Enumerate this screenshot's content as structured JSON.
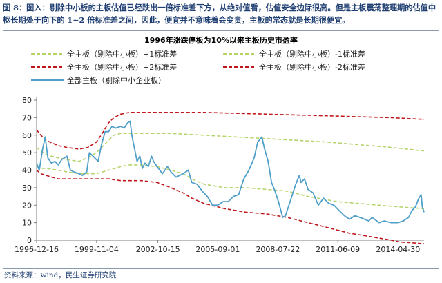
{
  "figure": {
    "number": "图 8：",
    "caption": "图入：剔除中小板的主板估值已经跌出一倍标准差下方，从绝对值看，估值安全边际很高。但是主板震荡整理期的估值中枢长期处于向下的 1~2 倍标准差之间，因此，便宜并不意味着会变贵，主板的常态就是长期很便宜。",
    "source": "资料来源：wind，民生证券研究院"
  },
  "colors": {
    "plus1": "#b5d36b",
    "minus1": "#b5d36b",
    "plus2": "#c0161c",
    "minus2": "#c0161c",
    "pe": "#4f9fc9",
    "caption": "#1f3f72"
  },
  "chart_data": {
    "type": "line",
    "title": "1996年涨跌停板为10%以来主板历史市盈率",
    "x_tick_labels": [
      "1996-12-16",
      "1999-11-04",
      "2002-10-15",
      "2005-09-01",
      "2008-07-22",
      "2011-06-09",
      "2014-04-30"
    ],
    "x_range": [
      "1996-12-16",
      "2015-07-31"
    ],
    "ylim": [
      0,
      80
    ],
    "y_ticks": [
      0,
      10,
      20,
      30,
      40,
      50,
      60,
      70,
      80
    ],
    "grid": false,
    "legend_position": "top",
    "series": [
      {
        "name": "全主板（剔除中小板）+1标准差",
        "style": "dashed",
        "color_key": "plus1",
        "points": [
          [
            "1996-12-16",
            53
          ],
          [
            "1997-03-01",
            51
          ],
          [
            "1997-06-01",
            49
          ],
          [
            "1997-09-01",
            48
          ],
          [
            "1998-01-01",
            47
          ],
          [
            "1998-06-01",
            46
          ],
          [
            "1999-01-01",
            45
          ],
          [
            "1999-06-01",
            47
          ],
          [
            "1999-11-01",
            50
          ],
          [
            "2000-03-01",
            54
          ],
          [
            "2000-06-01",
            57
          ],
          [
            "2000-09-01",
            60
          ],
          [
            "2001-01-01",
            61
          ],
          [
            "2001-06-01",
            61
          ],
          [
            "2001-09-01",
            61
          ],
          [
            "2002-06-01",
            61
          ],
          [
            "2003-06-01",
            61
          ],
          [
            "2005-01-01",
            60
          ],
          [
            "2008-01-01",
            58
          ],
          [
            "2011-01-01",
            56
          ],
          [
            "2014-01-01",
            53
          ],
          [
            "2015-07-31",
            51
          ]
        ]
      },
      {
        "name": "全主板（剔除中小板）-1标准差",
        "style": "dashed",
        "color_key": "minus1",
        "points": [
          [
            "1996-12-16",
            42
          ],
          [
            "1997-03-01",
            41
          ],
          [
            "1997-06-01",
            41
          ],
          [
            "1998-01-01",
            40
          ],
          [
            "1998-06-01",
            39
          ],
          [
            "1999-01-01",
            38
          ],
          [
            "1999-11-01",
            38
          ],
          [
            "2000-06-01",
            40
          ],
          [
            "2001-01-01",
            42
          ],
          [
            "2001-06-01",
            43
          ],
          [
            "2002-01-01",
            43
          ],
          [
            "2002-10-01",
            42
          ],
          [
            "2003-06-01",
            40
          ],
          [
            "2004-01-01",
            38
          ],
          [
            "2004-06-01",
            35
          ],
          [
            "2005-01-01",
            32
          ],
          [
            "2006-01-01",
            30
          ],
          [
            "2007-01-01",
            30
          ],
          [
            "2008-01-01",
            29
          ],
          [
            "2009-01-01",
            28
          ],
          [
            "2010-01-01",
            25
          ],
          [
            "2011-06-01",
            22
          ],
          [
            "2012-06-01",
            21
          ],
          [
            "2013-06-01",
            20
          ],
          [
            "2014-06-01",
            19
          ],
          [
            "2015-07-31",
            18
          ]
        ]
      },
      {
        "name": "全主板（剔除中小板）+2标准差",
        "style": "dashed",
        "color_key": "plus2",
        "points": [
          [
            "1996-12-16",
            63
          ],
          [
            "1997-03-01",
            60
          ],
          [
            "1997-06-01",
            57
          ],
          [
            "1998-01-01",
            54
          ],
          [
            "1998-06-01",
            53
          ],
          [
            "1999-01-01",
            52
          ],
          [
            "1999-06-01",
            53
          ],
          [
            "1999-11-01",
            56
          ],
          [
            "2000-03-01",
            62
          ],
          [
            "2000-06-01",
            67
          ],
          [
            "2000-09-01",
            70
          ],
          [
            "2001-01-01",
            72
          ],
          [
            "2001-06-01",
            73
          ],
          [
            "2002-01-01",
            73
          ],
          [
            "2003-01-01",
            73
          ],
          [
            "2005-01-01",
            73
          ],
          [
            "2008-01-01",
            72
          ],
          [
            "2011-01-01",
            71
          ],
          [
            "2014-01-01",
            70
          ],
          [
            "2015-07-31",
            69
          ]
        ]
      },
      {
        "name": "全主板（剔除中小板）-2标准差",
        "style": "dashed",
        "color_key": "minus2",
        "points": [
          [
            "1996-12-16",
            40
          ],
          [
            "1997-03-01",
            38
          ],
          [
            "1997-06-01",
            37
          ],
          [
            "1998-01-01",
            35
          ],
          [
            "1998-06-01",
            35
          ],
          [
            "1999-01-01",
            35
          ],
          [
            "1999-11-01",
            35
          ],
          [
            "2000-06-01",
            35
          ],
          [
            "2001-01-01",
            34
          ],
          [
            "2001-06-01",
            34
          ],
          [
            "2002-01-01",
            34
          ],
          [
            "2002-10-01",
            33
          ],
          [
            "2003-06-01",
            30
          ],
          [
            "2004-01-01",
            27
          ],
          [
            "2004-06-01",
            24
          ],
          [
            "2005-01-01",
            21
          ],
          [
            "2006-01-01",
            18
          ],
          [
            "2007-01-01",
            16
          ],
          [
            "2008-01-01",
            15
          ],
          [
            "2009-01-01",
            13
          ],
          [
            "2010-01-01",
            10
          ],
          [
            "2011-01-01",
            7
          ],
          [
            "2012-01-01",
            4
          ],
          [
            "2013-01-01",
            2
          ],
          [
            "2014-01-01",
            0
          ],
          [
            "2014-06-01",
            -1
          ],
          [
            "2015-07-31",
            -2
          ]
        ]
      },
      {
        "name": "全部主板（剔除中小企业板）",
        "style": "solid",
        "color_key": "pe",
        "points": [
          [
            "1996-12-16",
            44
          ],
          [
            "1997-02-01",
            40
          ],
          [
            "1997-04-01",
            52
          ],
          [
            "1997-05-15",
            59
          ],
          [
            "1997-07-01",
            47
          ],
          [
            "1997-09-01",
            44
          ],
          [
            "1997-11-01",
            45
          ],
          [
            "1998-01-01",
            43
          ],
          [
            "1998-03-01",
            46
          ],
          [
            "1998-06-01",
            48
          ],
          [
            "1998-08-01",
            40
          ],
          [
            "1998-10-01",
            39
          ],
          [
            "1999-01-01",
            38
          ],
          [
            "1999-03-01",
            37
          ],
          [
            "1999-05-15",
            39
          ],
          [
            "1999-06-30",
            50
          ],
          [
            "1999-09-01",
            48
          ],
          [
            "1999-12-01",
            45
          ],
          [
            "2000-02-01",
            55
          ],
          [
            "2000-04-01",
            62
          ],
          [
            "2000-06-01",
            62
          ],
          [
            "2000-08-01",
            65
          ],
          [
            "2000-10-01",
            64
          ],
          [
            "2001-01-01",
            65
          ],
          [
            "2001-03-01",
            64
          ],
          [
            "2001-05-01",
            67
          ],
          [
            "2001-06-15",
            68
          ],
          [
            "2001-07-15",
            60
          ],
          [
            "2001-09-01",
            52
          ],
          [
            "2001-10-15",
            45
          ],
          [
            "2001-12-01",
            48
          ],
          [
            "2002-01-15",
            41
          ],
          [
            "2002-03-01",
            44
          ],
          [
            "2002-05-01",
            42
          ],
          [
            "2002-06-25",
            48
          ],
          [
            "2002-08-01",
            45
          ],
          [
            "2002-10-01",
            42
          ],
          [
            "2003-01-01",
            38
          ],
          [
            "2003-04-01",
            42
          ],
          [
            "2003-06-01",
            39
          ],
          [
            "2003-09-01",
            36
          ],
          [
            "2004-01-01",
            38
          ],
          [
            "2004-04-01",
            40
          ],
          [
            "2004-06-01",
            33
          ],
          [
            "2004-09-01",
            32
          ],
          [
            "2004-12-01",
            28
          ],
          [
            "2005-03-01",
            25
          ],
          [
            "2005-06-01",
            20
          ],
          [
            "2005-09-01",
            20
          ],
          [
            "2005-12-01",
            22
          ],
          [
            "2006-03-01",
            22
          ],
          [
            "2006-06-01",
            25
          ],
          [
            "2006-09-01",
            26
          ],
          [
            "2006-12-01",
            35
          ],
          [
            "2007-03-01",
            40
          ],
          [
            "2007-06-01",
            47
          ],
          [
            "2007-08-01",
            56
          ],
          [
            "2007-10-15",
            59
          ],
          [
            "2007-12-01",
            52
          ],
          [
            "2008-02-01",
            45
          ],
          [
            "2008-04-01",
            33
          ],
          [
            "2008-06-01",
            28
          ],
          [
            "2008-08-01",
            22
          ],
          [
            "2008-10-15",
            13
          ],
          [
            "2008-12-01",
            14
          ],
          [
            "2009-02-01",
            20
          ],
          [
            "2009-04-01",
            26
          ],
          [
            "2009-06-01",
            32
          ],
          [
            "2009-08-01",
            37
          ],
          [
            "2009-09-01",
            33
          ],
          [
            "2009-11-01",
            35
          ],
          [
            "2010-01-01",
            29
          ],
          [
            "2010-04-01",
            27
          ],
          [
            "2010-07-01",
            20
          ],
          [
            "2010-10-01",
            24
          ],
          [
            "2011-01-01",
            21
          ],
          [
            "2011-04-01",
            20
          ],
          [
            "2011-07-01",
            17
          ],
          [
            "2011-10-01",
            14
          ],
          [
            "2012-01-01",
            12
          ],
          [
            "2012-04-01",
            14
          ],
          [
            "2012-07-01",
            13
          ],
          [
            "2012-12-01",
            11
          ],
          [
            "2013-02-01",
            13
          ],
          [
            "2013-06-01",
            10
          ],
          [
            "2013-09-01",
            11
          ],
          [
            "2014-01-01",
            10
          ],
          [
            "2014-05-01",
            10
          ],
          [
            "2014-08-01",
            11
          ],
          [
            "2014-11-01",
            13
          ],
          [
            "2015-01-01",
            17
          ],
          [
            "2015-03-01",
            19
          ],
          [
            "2015-05-01",
            24
          ],
          [
            "2015-06-10",
            26
          ],
          [
            "2015-07-01",
            19
          ],
          [
            "2015-07-31",
            16
          ]
        ]
      }
    ]
  }
}
